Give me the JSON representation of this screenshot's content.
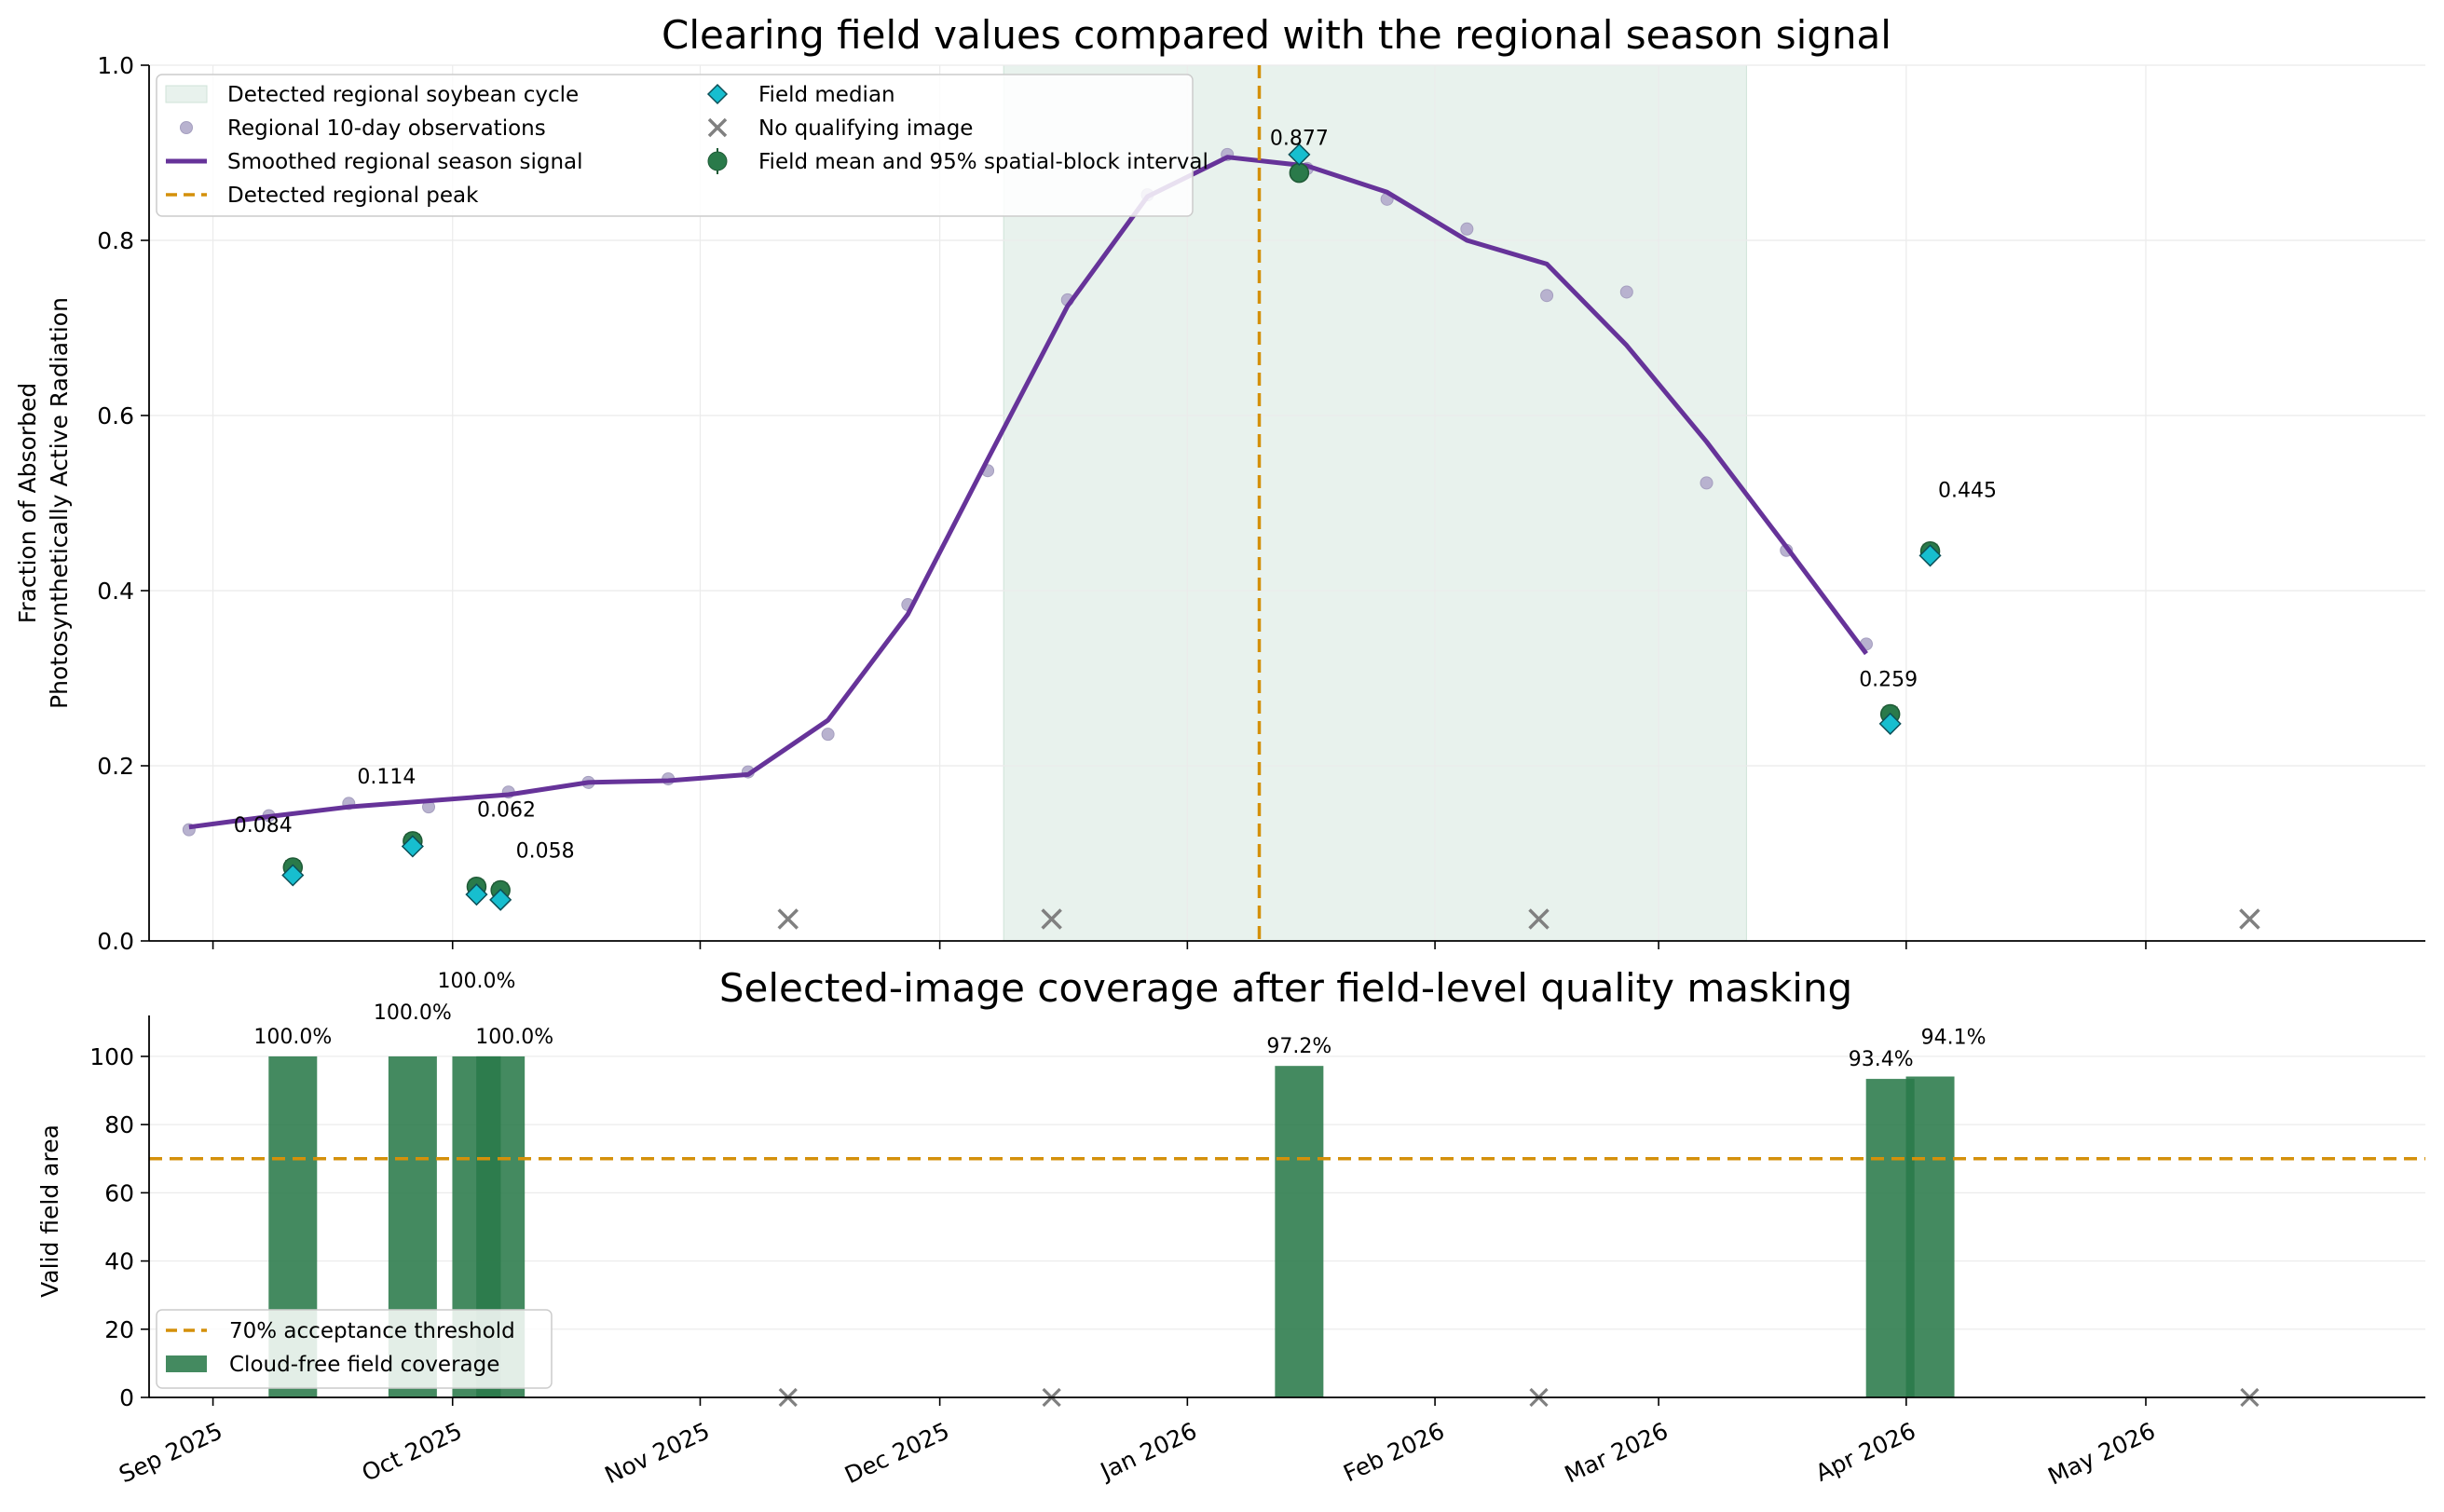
{
  "chart_data": [
    {
      "type": "line",
      "title": "Clearing field values compared with the regional season signal",
      "ylabel_lines": [
        "Fraction of Absorbed",
        "Photosynthetically Active Radiation"
      ],
      "ylim": [
        0,
        1.0
      ],
      "xlim": [
        "2025-08-24",
        "2026-06-05"
      ],
      "yticks": [
        {
          "v": 0.0,
          "label": "0.0"
        },
        {
          "v": 0.2,
          "label": "0.2"
        },
        {
          "v": 0.4,
          "label": "0.4"
        },
        {
          "v": 0.6,
          "label": "0.6"
        },
        {
          "v": 0.8,
          "label": "0.8"
        },
        {
          "v": 1.0,
          "label": "1.0"
        }
      ],
      "grid": true,
      "legend_position": "top-left",
      "legend": [
        {
          "key": "cycle",
          "label": "Detected regional soybean cycle"
        },
        {
          "key": "obs",
          "label": "Regional 10-day observations"
        },
        {
          "key": "smooth",
          "label": "Smoothed regional season signal"
        },
        {
          "key": "peak",
          "label": "Detected regional peak"
        },
        {
          "key": "median",
          "label": "Field median"
        },
        {
          "key": "noimg",
          "label": "No qualifying image"
        },
        {
          "key": "mean",
          "label": "Field mean and 95% spatial-block interval"
        }
      ],
      "season_cycle": [
        "2025-12-09",
        "2026-03-12"
      ],
      "peak_date": "2026-01-10",
      "regional_observations": [
        {
          "x": "2025-08-29",
          "y": 0.127
        },
        {
          "x": "2025-09-08",
          "y": 0.143
        },
        {
          "x": "2025-09-18",
          "y": 0.157
        },
        {
          "x": "2025-09-28",
          "y": 0.153
        },
        {
          "x": "2025-10-08",
          "y": 0.17
        },
        {
          "x": "2025-10-18",
          "y": 0.181
        },
        {
          "x": "2025-10-28",
          "y": 0.185
        },
        {
          "x": "2025-11-07",
          "y": 0.193
        },
        {
          "x": "2025-11-17",
          "y": 0.236
        },
        {
          "x": "2025-11-27",
          "y": 0.384
        },
        {
          "x": "2025-12-07",
          "y": 0.537
        },
        {
          "x": "2025-12-17",
          "y": 0.732
        },
        {
          "x": "2025-12-27",
          "y": 0.852
        },
        {
          "x": "2026-01-06",
          "y": 0.898
        },
        {
          "x": "2026-01-16",
          "y": 0.882
        },
        {
          "x": "2026-01-26",
          "y": 0.847
        },
        {
          "x": "2026-02-05",
          "y": 0.813
        },
        {
          "x": "2026-02-15",
          "y": 0.737
        },
        {
          "x": "2026-02-25",
          "y": 0.741
        },
        {
          "x": "2026-03-07",
          "y": 0.523
        },
        {
          "x": "2026-03-17",
          "y": 0.446
        },
        {
          "x": "2026-03-27",
          "y": 0.339
        }
      ],
      "smoothed_signal": [
        {
          "x": "2025-08-29",
          "y": 0.13
        },
        {
          "x": "2025-09-08",
          "y": 0.142
        },
        {
          "x": "2025-09-18",
          "y": 0.153
        },
        {
          "x": "2025-09-28",
          "y": 0.16
        },
        {
          "x": "2025-10-08",
          "y": 0.167
        },
        {
          "x": "2025-10-18",
          "y": 0.181
        },
        {
          "x": "2025-10-28",
          "y": 0.183
        },
        {
          "x": "2025-11-07",
          "y": 0.19
        },
        {
          "x": "2025-11-17",
          "y": 0.252
        },
        {
          "x": "2025-11-27",
          "y": 0.373
        },
        {
          "x": "2025-12-07",
          "y": 0.55
        },
        {
          "x": "2025-12-17",
          "y": 0.725
        },
        {
          "x": "2025-12-27",
          "y": 0.85
        },
        {
          "x": "2026-01-06",
          "y": 0.895
        },
        {
          "x": "2026-01-16",
          "y": 0.885
        },
        {
          "x": "2026-01-26",
          "y": 0.855
        },
        {
          "x": "2026-02-05",
          "y": 0.8
        },
        {
          "x": "2026-02-15",
          "y": 0.773
        },
        {
          "x": "2026-02-25",
          "y": 0.68
        },
        {
          "x": "2026-03-07",
          "y": 0.57
        },
        {
          "x": "2026-03-17",
          "y": 0.45
        },
        {
          "x": "2026-03-27",
          "y": 0.328
        }
      ],
      "field_observations": [
        {
          "x": "2025-09-11",
          "mean": 0.084,
          "median": 0.075,
          "label": "0.084"
        },
        {
          "x": "2025-09-26",
          "mean": 0.114,
          "median": 0.108,
          "label": "0.114"
        },
        {
          "x": "2025-10-04",
          "mean": 0.062,
          "median": 0.053,
          "label": "0.062"
        },
        {
          "x": "2025-10-07",
          "mean": 0.058,
          "median": 0.047,
          "label": "0.058"
        },
        {
          "x": "2026-01-15",
          "mean": 0.877,
          "median": 0.898,
          "label": "0.877"
        },
        {
          "x": "2026-03-30",
          "mean": 0.259,
          "median": 0.248,
          "label": "0.259"
        },
        {
          "x": "2026-04-04",
          "mean": 0.445,
          "median": 0.44,
          "label": "0.445"
        }
      ],
      "no_qualifying_image": [
        {
          "x": "2025-11-12",
          "y": 0.025
        },
        {
          "x": "2025-12-15",
          "y": 0.025
        },
        {
          "x": "2026-02-14",
          "y": 0.025
        },
        {
          "x": "2026-05-14",
          "y": 0.025
        }
      ]
    },
    {
      "type": "bar",
      "title": "Selected-image coverage after field-level quality masking",
      "ylabel": "Valid field area",
      "ylim": [
        0,
        112
      ],
      "xlim": [
        "2025-08-24",
        "2026-06-05"
      ],
      "yticks": [
        {
          "v": 0,
          "label": "0"
        },
        {
          "v": 20,
          "label": "20"
        },
        {
          "v": 40,
          "label": "40"
        },
        {
          "v": 60,
          "label": "60"
        },
        {
          "v": 80,
          "label": "80"
        },
        {
          "v": 100,
          "label": "100"
        }
      ],
      "xticks": [
        {
          "x": "2025-09-01",
          "label": "Sep 2025"
        },
        {
          "x": "2025-10-01",
          "label": "Oct 2025"
        },
        {
          "x": "2025-11-01",
          "label": "Nov 2025"
        },
        {
          "x": "2025-12-01",
          "label": "Dec 2025"
        },
        {
          "x": "2026-01-01",
          "label": "Jan 2026"
        },
        {
          "x": "2026-02-01",
          "label": "Feb 2026"
        },
        {
          "x": "2026-03-01",
          "label": "Mar 2026"
        },
        {
          "x": "2026-04-01",
          "label": "Apr 2026"
        },
        {
          "x": "2026-05-01",
          "label": "May 2026"
        }
      ],
      "threshold": 70,
      "legend_position": "bottom-left",
      "legend": [
        {
          "key": "threshold",
          "label": "70% acceptance threshold"
        },
        {
          "key": "coverage",
          "label": "Cloud-free field coverage"
        }
      ],
      "bars": [
        {
          "x": "2025-09-11",
          "value": 100.0,
          "label": "100.0%",
          "label_raise": 0
        },
        {
          "x": "2025-09-26",
          "value": 100.0,
          "label": "100.0%",
          "label_raise": 8
        },
        {
          "x": "2025-10-04",
          "value": 100.0,
          "label": "100.0%",
          "label_raise": 16
        },
        {
          "x": "2025-10-07",
          "value": 100.0,
          "label": "100.0%",
          "label_raise": 0
        },
        {
          "x": "2026-01-15",
          "value": 97.2,
          "label": "97.2%",
          "label_raise": 0
        },
        {
          "x": "2026-03-30",
          "value": 93.4,
          "label": "93.4%",
          "label_raise": 0
        },
        {
          "x": "2026-04-04",
          "value": 94.1,
          "label": "94.1%",
          "label_raise": 0
        }
      ],
      "no_qualifying_image": [
        {
          "x": "2025-11-12"
        },
        {
          "x": "2025-12-15"
        },
        {
          "x": "2026-02-14"
        },
        {
          "x": "2026-05-14"
        }
      ]
    }
  ],
  "colors": {
    "purple": "#663399",
    "peak": "#d4900a",
    "cycle_fill": "#e8f2ed",
    "cycle_edge": "#cfe3d8",
    "mean": "#2a7a4a",
    "median": "#17becf",
    "bar": "#2a7a4a",
    "obs": "#b8b2cf",
    "cross": "#808080",
    "grid": "#ebebeb"
  }
}
